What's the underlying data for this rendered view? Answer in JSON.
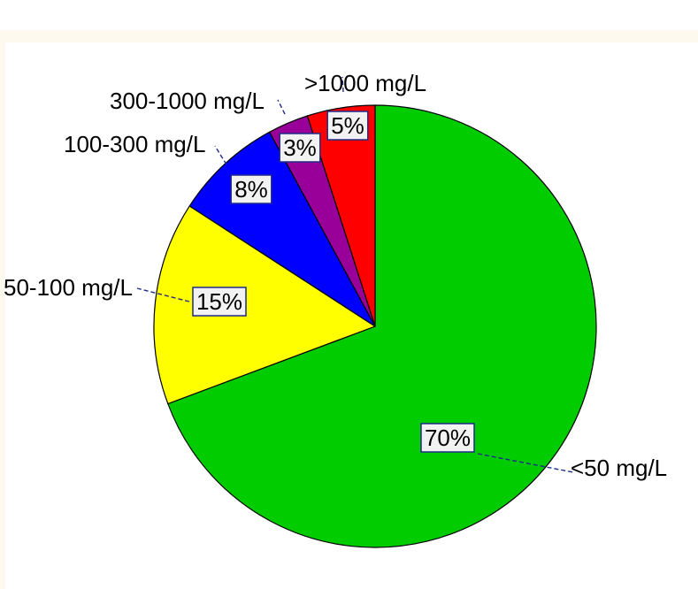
{
  "chart_data": {
    "type": "pie",
    "title": "",
    "start": "12 o'clock",
    "direction": "clockwise",
    "legend": "none",
    "slices": [
      {
        "label": "<50 mg/L",
        "value": 70,
        "percent_label": "70%",
        "color": "#00cc00"
      },
      {
        "label": "50-100 mg/L",
        "value": 15,
        "percent_label": "15%",
        "color": "#ffff00"
      },
      {
        "label": "100-300 mg/L",
        "value": 8,
        "percent_label": "8%",
        "color": "#0000ff"
      },
      {
        "label": "300-1000 mg/L",
        "value": 3,
        "percent_label": "3%",
        "color": "#990099"
      },
      {
        "label": ">1000 mg/L",
        "value": 5,
        "percent_label": "5%",
        "color": "#ff0000"
      }
    ]
  }
}
